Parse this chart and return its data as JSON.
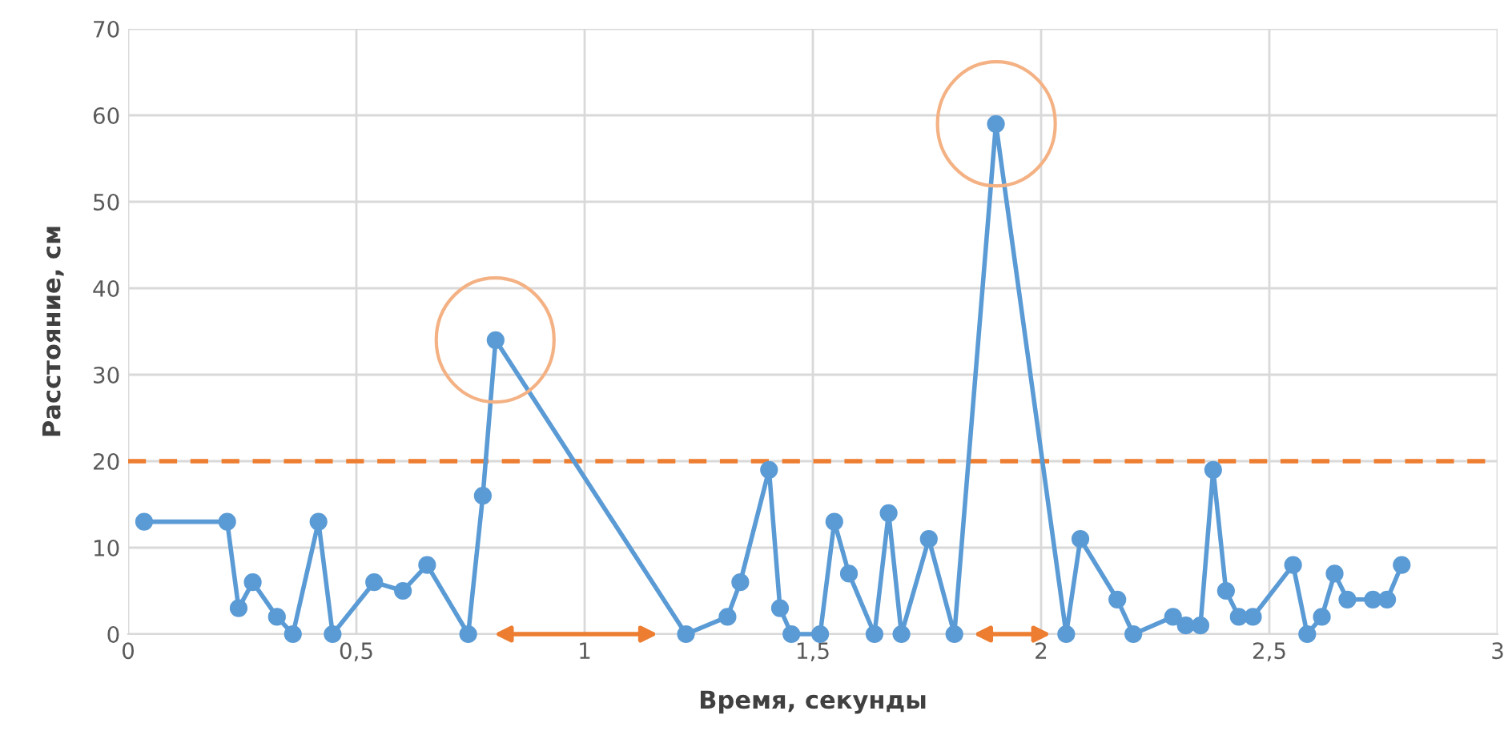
{
  "chart_data": {
    "type": "line",
    "xlabel": "Время, секунды",
    "ylabel": "Расстояние, см",
    "x": [
      0.035,
      0.217,
      0.242,
      0.273,
      0.326,
      0.361,
      0.417,
      0.448,
      0.539,
      0.602,
      0.655,
      0.745,
      0.777,
      0.805,
      1.222,
      1.313,
      1.341,
      1.404,
      1.428,
      1.453,
      1.516,
      1.547,
      1.579,
      1.635,
      1.666,
      1.694,
      1.754,
      1.81,
      1.901,
      2.055,
      2.086,
      2.167,
      2.202,
      2.289,
      2.317,
      2.349,
      2.377,
      2.405,
      2.433,
      2.464,
      2.552,
      2.583,
      2.615,
      2.643,
      2.671,
      2.727,
      2.758,
      2.79
    ],
    "series": [
      {
        "color": "#5b9bd5",
        "values": [
          13,
          13,
          3,
          6,
          2,
          0,
          13,
          0,
          6,
          5,
          8,
          0,
          16,
          34,
          0,
          2,
          6,
          19,
          3,
          0,
          0,
          13,
          7,
          0,
          14,
          0,
          11,
          0,
          59,
          0,
          11,
          4,
          0,
          2,
          1,
          1,
          19,
          5,
          2,
          2,
          8,
          0,
          2,
          7,
          4,
          4,
          4,
          8
        ]
      }
    ],
    "marker": "circle",
    "line_style": "solid",
    "grid": true,
    "legend": false,
    "xlim": [
      0,
      3
    ],
    "xticks": [
      0,
      {
        "value": 0.5,
        "label": "0,5"
      },
      1,
      {
        "value": 1.5,
        "label": "1,5"
      },
      2,
      {
        "value": 2.5,
        "label": "2,5"
      },
      3
    ],
    "ylim": [
      0,
      70
    ],
    "yticks": [
      0,
      10,
      20,
      30,
      40,
      50,
      60,
      70
    ],
    "ref_lines": [
      {
        "axis": "y",
        "value": 20,
        "color": "#ed7d31",
        "line_style": "dashed"
      }
    ]
  }
}
